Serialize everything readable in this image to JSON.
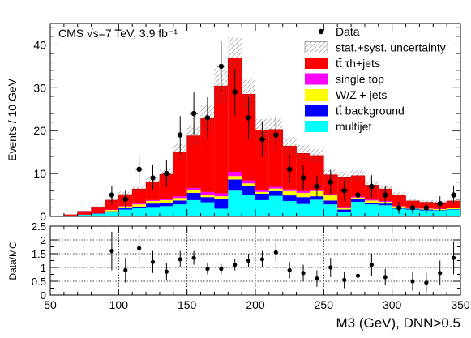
{
  "chart_data": [
    {
      "type": "bar",
      "stacked": true,
      "annotation": "CMS √s=7 TeV, 3.9 fb⁻¹",
      "ylabel": "Events / 10 GeV",
      "ylim": [
        0,
        45
      ],
      "yticks": [
        "0",
        "10",
        "20",
        "30",
        "40"
      ],
      "bin_edges": [
        50,
        60,
        70,
        80,
        90,
        100,
        110,
        120,
        130,
        140,
        150,
        160,
        170,
        180,
        190,
        200,
        210,
        220,
        230,
        240,
        250,
        260,
        270,
        280,
        290,
        300,
        310,
        320,
        330,
        340,
        350
      ],
      "series": [
        {
          "name": "multijet",
          "color": "#00ffff",
          "values": [
            0,
            0.2,
            0.4,
            0.6,
            1.0,
            1.6,
            1.9,
            2.2,
            2.4,
            2.8,
            3.8,
            3.3,
            1.8,
            6.0,
            5.0,
            3.8,
            4.8,
            3.6,
            2.9,
            3.9,
            2.8,
            1.0,
            3.4,
            2.8,
            2.6,
            1.8,
            1.6,
            1.4,
            1.4,
            1.6
          ]
        },
        {
          "name": "tt̄ background",
          "color": "#0000ff",
          "values": [
            0,
            0,
            0,
            0.1,
            0.2,
            0.3,
            0.4,
            0.8,
            0.8,
            0.9,
            1.7,
            1.2,
            2.3,
            2.6,
            2.0,
            1.5,
            1.1,
            1.3,
            1.6,
            0.8,
            0.9,
            0.6,
            0.6,
            0.4,
            0.4,
            0.2,
            0.2,
            0.2,
            0.1,
            0.1
          ]
        },
        {
          "name": "W/Z + jets",
          "color": "#ffff00",
          "values": [
            0,
            0,
            0,
            0,
            0.3,
            0.4,
            0.5,
            0.6,
            0.6,
            0.6,
            0.6,
            0.6,
            0.6,
            0.8,
            0.7,
            0.4,
            0.6,
            1.0,
            1.0,
            1.2,
            1.2,
            0.3,
            0.4,
            0.5,
            0.4,
            0.3,
            0.2,
            0.2,
            0.2,
            0.2
          ]
        },
        {
          "name": "single top",
          "color": "#ff00ff",
          "values": [
            0,
            0,
            0,
            0,
            0.1,
            0.1,
            0.2,
            0.2,
            0.3,
            0.4,
            0.5,
            0.6,
            0.7,
            1.0,
            0.7,
            0.5,
            0.4,
            0.4,
            0.4,
            0.3,
            0.3,
            0.3,
            0.2,
            0.2,
            0.2,
            0.1,
            0.1,
            0.1,
            0.1,
            0.1
          ]
        },
        {
          "name": "tt̄ τh+jets",
          "color": "#ff0000",
          "values": [
            0.1,
            0.2,
            0.8,
            1.5,
            2.2,
            2.7,
            3.4,
            4.3,
            5.7,
            10.3,
            12.2,
            17.2,
            25.0,
            26.6,
            20.1,
            13.9,
            13.4,
            10.1,
            8.8,
            8.0,
            4.5,
            7.0,
            4.9,
            3.4,
            2.8,
            2.6,
            1.5,
            1.4,
            1.4,
            1.6
          ]
        }
      ],
      "uncertainty_name": "stat.+syst. uncertainty",
      "uncertainty_rel": 0.13,
      "data": {
        "name": "Data",
        "x": [
          95,
          105,
          115,
          125,
          135,
          145,
          155,
          165,
          175,
          185,
          195,
          205,
          215,
          225,
          235,
          245,
          255,
          265,
          275,
          285,
          295,
          305,
          315,
          325,
          335,
          345
        ],
        "y": [
          5,
          4,
          11,
          9,
          10,
          19,
          24,
          23,
          35,
          29,
          23,
          18,
          19,
          11,
          9,
          7,
          8,
          6,
          5,
          7,
          5,
          2,
          2,
          2,
          3,
          5
        ],
        "err": [
          2.2,
          2.0,
          3.3,
          3.0,
          3.2,
          4.4,
          4.9,
          4.8,
          5.9,
          5.4,
          4.8,
          4.2,
          4.4,
          3.3,
          3.0,
          2.6,
          2.8,
          2.4,
          2.2,
          2.6,
          2.2,
          1.4,
          1.4,
          1.4,
          1.7,
          2.2
        ]
      },
      "legend": {
        "placement": "top-right",
        "entries": [
          {
            "label": "Data",
            "kind": "marker"
          },
          {
            "label": "stat.+syst. uncertainty",
            "kind": "hatch"
          },
          {
            "label": "tt̄ τh+jets",
            "kind": "fill",
            "color": "#ff0000"
          },
          {
            "label": "single top",
            "kind": "fill",
            "color": "#ff00ff"
          },
          {
            "label": "W/Z + jets",
            "kind": "fill",
            "color": "#ffff00"
          },
          {
            "label": "tt̄ background",
            "kind": "fill",
            "color": "#0000ff"
          },
          {
            "label": "multijet",
            "kind": "fill",
            "color": "#00ffff"
          }
        ]
      }
    },
    {
      "type": "scatter",
      "ylabel": "Data/MC",
      "xlabel": "M3 (GeV), DNN>0.5",
      "xlim": [
        50,
        350
      ],
      "xticks": [
        "50",
        "100",
        "150",
        "200",
        "250",
        "300",
        "350"
      ],
      "ylim": [
        0,
        2.5
      ],
      "yticks": [
        "0",
        "0.5",
        "1",
        "1.5",
        "2",
        "2.5"
      ],
      "grid": true,
      "x": [
        95,
        105,
        115,
        125,
        135,
        145,
        155,
        165,
        175,
        185,
        195,
        205,
        215,
        225,
        235,
        245,
        255,
        265,
        275,
        285,
        295,
        315,
        325,
        335,
        345
      ],
      "y": [
        1.6,
        0.9,
        1.7,
        1.2,
        0.85,
        1.3,
        1.35,
        0.95,
        0.95,
        1.1,
        1.25,
        1.3,
        1.55,
        0.9,
        0.8,
        0.6,
        1.0,
        0.55,
        0.7,
        1.1,
        0.65,
        0.5,
        0.45,
        0.8,
        1.35
      ],
      "err": [
        0.7,
        0.45,
        0.5,
        0.4,
        0.3,
        0.3,
        0.25,
        0.2,
        0.18,
        0.2,
        0.25,
        0.3,
        0.35,
        0.3,
        0.3,
        0.3,
        0.35,
        0.3,
        0.3,
        0.4,
        0.3,
        0.35,
        0.35,
        0.45,
        0.6
      ]
    }
  ]
}
